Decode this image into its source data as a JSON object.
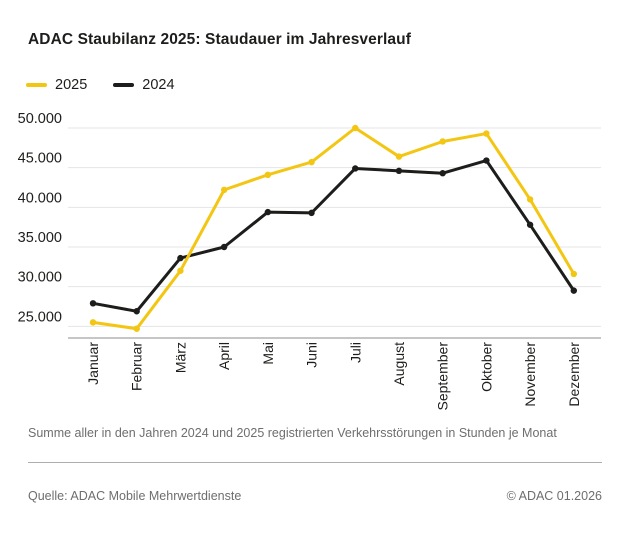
{
  "header": {
    "title": "ADAC Staubilanz 2025: Staudauer im Jahresverlauf"
  },
  "legend": {
    "items": [
      {
        "label": "2025",
        "color": "#F3C613"
      },
      {
        "label": "2024",
        "color": "#1D1D1B"
      }
    ]
  },
  "chart_data": {
    "type": "line",
    "title": "ADAC Staubilanz 2025: Staudauer im Jahresverlauf",
    "categories": [
      "Januar",
      "Februar",
      "März",
      "April",
      "Mai",
      "Juni",
      "Juli",
      "August",
      "September",
      "Oktober",
      "November",
      "Dezember"
    ],
    "series": [
      {
        "name": "2025",
        "color": "#F3C613",
        "values": [
          25500,
          24700,
          32000,
          42200,
          44100,
          45700,
          50000,
          46400,
          48300,
          49300,
          41000,
          31600
        ]
      },
      {
        "name": "2024",
        "color": "#1D1D1B",
        "values": [
          27900,
          26900,
          33600,
          35000,
          39400,
          39300,
          44900,
          44600,
          44300,
          45900,
          37800,
          29500
        ]
      }
    ],
    "yticks": [
      {
        "value": 25000,
        "label": "25.000"
      },
      {
        "value": 30000,
        "label": "30.000"
      },
      {
        "value": 35000,
        "label": "35.000"
      },
      {
        "value": 40000,
        "label": "40.000"
      },
      {
        "value": 45000,
        "label": "45.000"
      },
      {
        "value": 50000,
        "label": "50.000"
      }
    ],
    "ylim": [
      23500,
      50000
    ],
    "grid": "horizontal",
    "legend_position": "top-left",
    "x_label_rotation": -90
  },
  "footnote": "Summe aller in den Jahren 2024 und 2025 registrierten Verkehrsstörungen in Stunden je Monat",
  "footer": {
    "source": "Quelle: ADAC Mobile Mehrwertdienste",
    "copyright": "© ADAC 01.2026"
  },
  "colors": {
    "accent_yellow": "#F3C613",
    "series_black": "#1D1D1B",
    "gridline": "#E4E4E4",
    "axis": "#8C8C8C",
    "muted_text": "#6E6E6E"
  }
}
